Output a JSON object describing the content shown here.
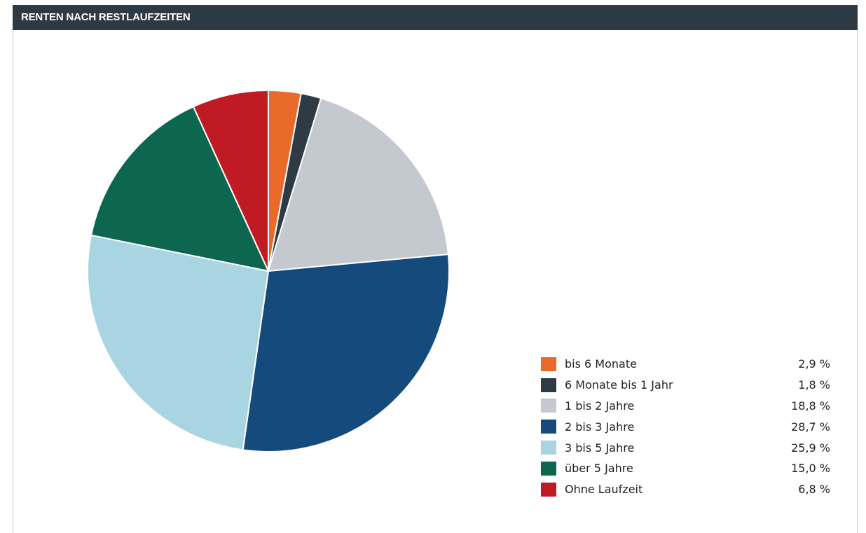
{
  "header": {
    "title": "RENTEN NACH RESTLAUFZEITEN"
  },
  "chart_data": {
    "type": "pie",
    "title": "RENTEN NACH RESTLAUFZEITEN",
    "slices": [
      {
        "label": "bis 6 Monate",
        "value": 2.9,
        "display": "2,9 %",
        "color": "#ea6a2c"
      },
      {
        "label": "6 Monate bis 1 Jahr",
        "value": 1.8,
        "display": "1,8 %",
        "color": "#2e3b44"
      },
      {
        "label": "1 bis 2 Jahre",
        "value": 18.8,
        "display": "18,8 %",
        "color": "#c4c8cf"
      },
      {
        "label": "2 bis 3 Jahre",
        "value": 28.7,
        "display": "28,7 %",
        "color": "#154a7d"
      },
      {
        "label": "3 bis 5 Jahre",
        "value": 25.9,
        "display": "25,9 %",
        "color": "#a9d4e1"
      },
      {
        "label": "über 5 Jahre",
        "value": 15.0,
        "display": "15,0 %",
        "color": "#0c6650"
      },
      {
        "label": "Ohne Laufzeit",
        "value": 6.8,
        "display": "6,8 %",
        "color": "#c01b25"
      }
    ],
    "start": "12 o'clock",
    "direction": "clockwise",
    "legend": "bottom-right"
  }
}
